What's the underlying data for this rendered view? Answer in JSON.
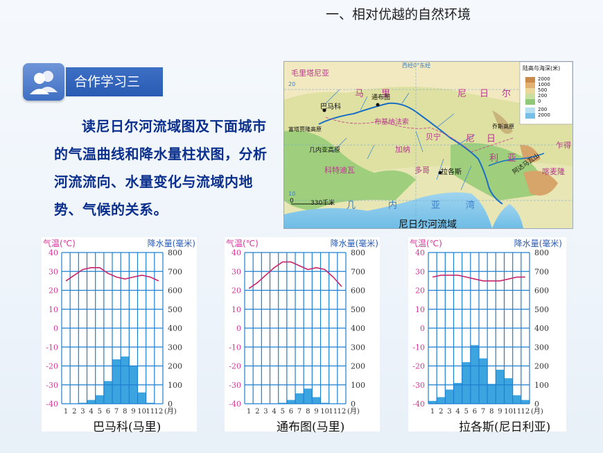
{
  "title": "一、相对优越的自然环境",
  "badge": {
    "label": "合作学习三"
  },
  "paragraph": "读尼日尔河流域图及下面城市的气温曲线和降水量柱状图，分析河流流向、水量变化与流域内地势、气候的关系。",
  "map": {
    "caption": "尼日尔河流域",
    "labels": {
      "mauritania": "毛里塔尼亚",
      "mali": [
        "马",
        "里"
      ],
      "niger": [
        "尼",
        "日",
        "尔"
      ],
      "nigeria": [
        "尼",
        "日",
        "利",
        "亚"
      ],
      "timbuktu": "通布图",
      "bamako": "巴马科",
      "lagos": "拉各斯",
      "burkina": "布基纳法索",
      "guinea_gulf": [
        "几",
        "内",
        "亚",
        "湾"
      ],
      "guinea_highland": "几内亚高原",
      "fouta": "富塔贾隆高原",
      "ghana": "加纳",
      "benin": "贝宁",
      "cote": "科特迪瓦",
      "togo": "多哥",
      "chad": "乍得",
      "cameroon": "喀麦隆",
      "adamawa": "阿达马瓦山",
      "jos": "乔斯高原",
      "lon0": "西经0°东经",
      "lat20": "20",
      "lat10": "10",
      "scale": "330千米",
      "scale0": "0",
      "legend_title": "陆高与海深(米)",
      "legend_values": [
        "2000",
        "1000",
        "500",
        "200",
        "0",
        "200",
        "2000"
      ]
    }
  },
  "chart_common": {
    "temp_label": "气温(℃)",
    "precip_label": "降水量(毫米)",
    "temp_ticks": [
      "40",
      "30",
      "20",
      "10",
      "0",
      "-10",
      "-20",
      "-30",
      "-40"
    ],
    "precip_ticks": [
      "800",
      "700",
      "600",
      "500",
      "400",
      "300",
      "200",
      "100",
      "0"
    ],
    "months": [
      "1",
      "2",
      "3",
      "4",
      "5",
      "6",
      "7",
      "8",
      "9",
      "10",
      "11",
      "12"
    ],
    "month_unit": "(月)"
  },
  "chart_data": [
    {
      "type": "bar",
      "title": "巴马科(马里)",
      "categories": [
        "1",
        "2",
        "3",
        "4",
        "5",
        "6",
        "7",
        "8",
        "9",
        "10",
        "11",
        "12"
      ],
      "series": [
        {
          "name": "降水量",
          "values": [
            0,
            0,
            5,
            20,
            45,
            120,
            235,
            250,
            200,
            60,
            5,
            0
          ]
        },
        {
          "name": "气温",
          "values": [
            25,
            28,
            31,
            32,
            32,
            29,
            27,
            26,
            27,
            28,
            27,
            25
          ]
        }
      ],
      "ylim_temp": [
        -40,
        40
      ],
      "ylim_precip": [
        0,
        800
      ]
    },
    {
      "type": "bar",
      "title": "通布图(马里)",
      "categories": [
        "1",
        "2",
        "3",
        "4",
        "5",
        "6",
        "7",
        "8",
        "9",
        "10",
        "11",
        "12"
      ],
      "series": [
        {
          "name": "降水量",
          "values": [
            0,
            0,
            0,
            0,
            5,
            20,
            55,
            80,
            35,
            5,
            0,
            0
          ]
        },
        {
          "name": "气温",
          "values": [
            21,
            24,
            28,
            32,
            35,
            35,
            33,
            31,
            32,
            31,
            27,
            22
          ]
        }
      ],
      "ylim_temp": [
        -40,
        40
      ],
      "ylim_precip": [
        0,
        800
      ]
    },
    {
      "type": "bar",
      "title": "拉各斯(尼日利亚)",
      "categories": [
        "1",
        "2",
        "3",
        "4",
        "5",
        "6",
        "7",
        "8",
        "9",
        "10",
        "11",
        "12"
      ],
      "series": [
        {
          "name": "降水量",
          "values": [
            15,
            35,
            75,
            110,
            220,
            310,
            240,
            105,
            180,
            135,
            45,
            20
          ]
        },
        {
          "name": "气温",
          "values": [
            27,
            28,
            28,
            28,
            27,
            26,
            25,
            25,
            25,
            26,
            27,
            27
          ]
        }
      ],
      "ylim_temp": [
        -40,
        40
      ],
      "ylim_precip": [
        0,
        800
      ]
    }
  ],
  "colors": {
    "grid": "#1e7fd0",
    "bar": "#3ca5e0",
    "curve": "#c8246c",
    "temp_text": "#d6359b",
    "precip_text": "#2a5bb3"
  }
}
